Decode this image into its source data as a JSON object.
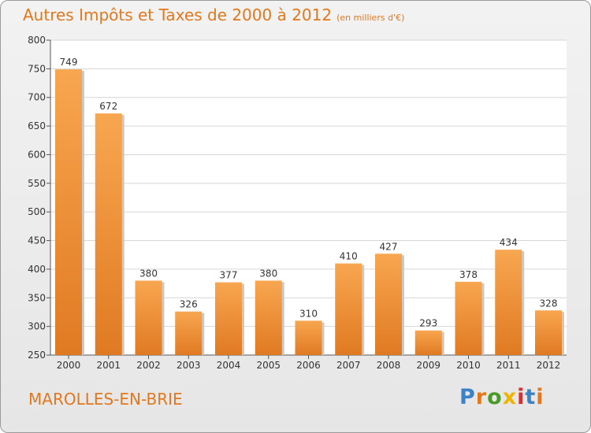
{
  "page": {
    "title": "Autres Impôts et Taxes de 2000 à 2012",
    "subtitle": "(en milliers d'€)",
    "city": "MAROLLES-EN-BRIE",
    "logo": "Proxiti"
  },
  "colors": {
    "accent": "#e2781e",
    "bar_light": "#f8a650",
    "bar_dark": "#e07a22"
  },
  "chart_data": {
    "type": "bar",
    "categories": [
      "2000",
      "2001",
      "2002",
      "2003",
      "2004",
      "2005",
      "2006",
      "2007",
      "2008",
      "2009",
      "2010",
      "2011",
      "2012"
    ],
    "values": [
      749,
      672,
      380,
      326,
      377,
      380,
      310,
      410,
      427,
      293,
      378,
      434,
      328
    ],
    "title": "Autres Impôts et Taxes de 2000 à 2012",
    "subtitle": "(en milliers d'€)",
    "ylim": [
      250,
      800
    ],
    "yticks": [
      250,
      300,
      350,
      400,
      450,
      500,
      550,
      600,
      650,
      700,
      750,
      800
    ],
    "grid": true
  }
}
